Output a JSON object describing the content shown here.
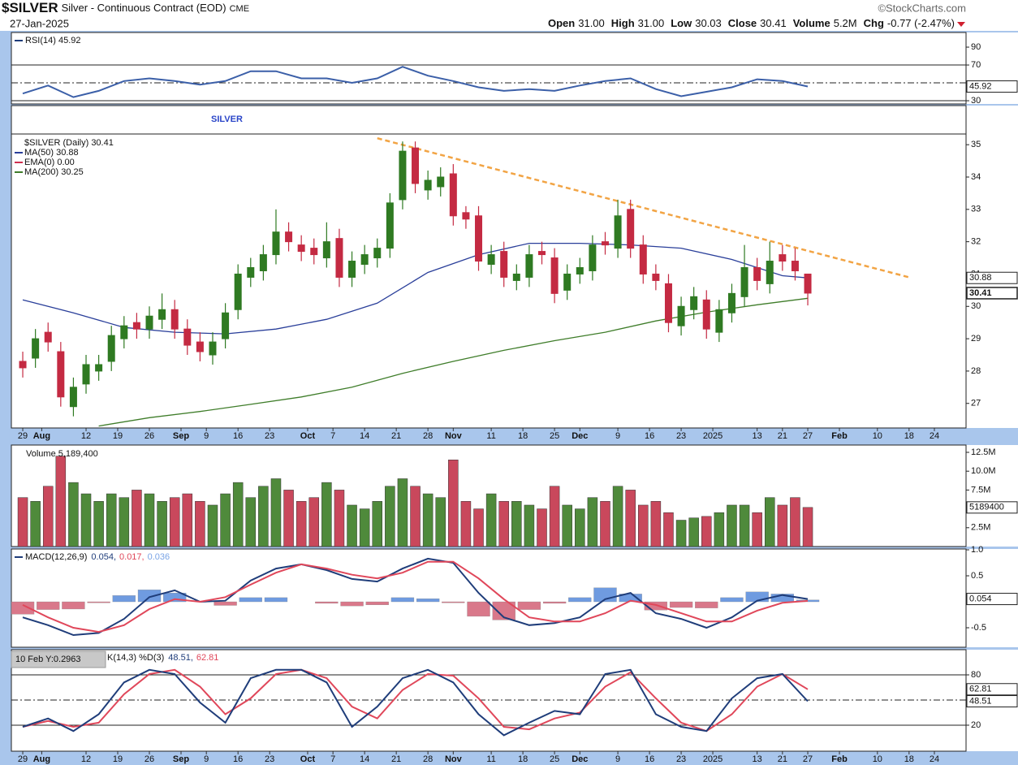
{
  "header": {
    "symbol": "$SILVER",
    "description": "Silver - Continuous Contract (EOD)",
    "exchange": "CME",
    "date": "27-Jan-2025",
    "brand": "©StockCharts.com",
    "quote": [
      {
        "label": "Open",
        "value": "31.00"
      },
      {
        "label": "High",
        "value": "31.00"
      },
      {
        "label": "Low",
        "value": "30.03"
      },
      {
        "label": "Close",
        "value": "30.41"
      },
      {
        "label": "Volume",
        "value": "5.2M"
      },
      {
        "label": "Chg",
        "value": "-0.77 (-2.47%)"
      }
    ]
  },
  "chart_data": [
    {
      "type": "line",
      "legend_title": "RSI(14) 45.92",
      "x": [
        0,
        4,
        8,
        12,
        16,
        20,
        24,
        28,
        32,
        36,
        40,
        44,
        48,
        52,
        56,
        60,
        64,
        68,
        72,
        76,
        80,
        84,
        88,
        92,
        96,
        100,
        104,
        108,
        112,
        116,
        120,
        124
      ],
      "series": [
        {
          "color": "#3b5fa8",
          "values": [
            38,
            47,
            34,
            41,
            52,
            55,
            52,
            48,
            52,
            63,
            63,
            55,
            55,
            50,
            55,
            68,
            58,
            52,
            45,
            41,
            43,
            41,
            47,
            52,
            55,
            43,
            35,
            40,
            45,
            54,
            52,
            45.92
          ]
        }
      ],
      "ylim": [
        26.4,
        106.4
      ],
      "yticks": [
        90,
        70,
        30
      ],
      "hlines": [
        {
          "value": 70,
          "dash": false
        },
        {
          "value": 50,
          "dash": true
        },
        {
          "value": 30,
          "dash": false
        }
      ],
      "badges": [
        45.92
      ]
    },
    {
      "type": "candlestick",
      "name": "$SILVER (Daily) 30.41",
      "annotation": "SILVER",
      "up_color": "#2f7a22",
      "down_color": "#c42a42",
      "x": [
        0,
        2,
        4,
        6,
        8,
        10,
        12,
        14,
        16,
        18,
        20,
        22,
        24,
        26,
        28,
        30,
        32,
        34,
        36,
        38,
        40,
        42,
        44,
        46,
        48,
        50,
        52,
        54,
        56,
        58,
        60,
        62,
        64,
        66,
        68,
        70,
        72,
        74,
        76,
        78,
        80,
        82,
        84,
        86,
        88,
        90,
        92,
        94,
        96,
        98,
        100,
        102,
        104,
        106,
        108,
        110,
        112,
        114,
        116,
        118,
        120,
        122,
        124
      ],
      "open": [
        28.3,
        28.4,
        29.2,
        28.6,
        26.9,
        27.6,
        28.0,
        28.3,
        29.0,
        29.5,
        29.3,
        29.6,
        29.9,
        29.3,
        28.9,
        28.5,
        29.0,
        29.9,
        30.9,
        31.1,
        31.6,
        32.3,
        31.9,
        31.8,
        31.5,
        32.1,
        30.9,
        31.3,
        31.5,
        31.8,
        33.3,
        34.9,
        33.6,
        33.7,
        34.1,
        32.9,
        32.8,
        31.3,
        31.7,
        30.8,
        30.9,
        31.7,
        31.5,
        30.5,
        31.0,
        31.1,
        32.0,
        31.8,
        33.0,
        31.9,
        31.0,
        30.7,
        29.4,
        29.9,
        30.2,
        29.2,
        29.8,
        30.3,
        31.2,
        30.7,
        31.6,
        31.4,
        31.0
      ],
      "high": [
        28.6,
        29.3,
        29.5,
        28.9,
        27.8,
        28.5,
        28.5,
        29.4,
        29.7,
        29.8,
        30.0,
        30.4,
        30.2,
        29.6,
        29.2,
        29.2,
        30.1,
        31.3,
        31.5,
        31.9,
        33.0,
        32.6,
        32.2,
        32.1,
        32.6,
        32.4,
        31.7,
        31.9,
        32.1,
        33.5,
        35.1,
        35.1,
        34.2,
        34.3,
        34.4,
        33.1,
        33.1,
        31.9,
        32.0,
        31.3,
        31.9,
        32.0,
        31.8,
        31.3,
        31.5,
        32.2,
        32.3,
        33.3,
        33.3,
        32.2,
        31.3,
        31.0,
        30.3,
        30.6,
        30.5,
        30.2,
        30.7,
        31.9,
        31.5,
        32.0,
        31.9,
        31.8,
        31.0
      ],
      "low": [
        27.8,
        28.1,
        28.6,
        26.9,
        26.6,
        27.3,
        27.7,
        28.0,
        28.7,
        29.0,
        29.0,
        29.3,
        29.0,
        28.5,
        28.3,
        28.2,
        28.7,
        29.6,
        30.6,
        30.8,
        31.3,
        31.7,
        31.4,
        31.3,
        31.2,
        30.6,
        30.6,
        31.0,
        31.2,
        31.5,
        33.0,
        33.5,
        33.3,
        33.4,
        32.5,
        32.4,
        31.1,
        31.0,
        30.6,
        30.5,
        30.6,
        31.3,
        30.1,
        30.2,
        30.7,
        30.8,
        31.6,
        31.5,
        31.5,
        30.7,
        30.5,
        29.2,
        29.1,
        29.6,
        29.0,
        28.9,
        29.5,
        30.0,
        30.5,
        30.4,
        31.1,
        30.8,
        30.03
      ],
      "close": [
        28.1,
        29.0,
        28.9,
        27.2,
        27.5,
        28.2,
        28.2,
        29.1,
        29.4,
        29.3,
        29.7,
        29.9,
        29.3,
        28.8,
        28.6,
        28.9,
        29.8,
        31.0,
        31.2,
        31.6,
        32.3,
        32.0,
        31.7,
        31.6,
        32.0,
        30.9,
        31.4,
        31.6,
        31.8,
        33.2,
        34.8,
        33.8,
        33.9,
        34.0,
        32.8,
        32.7,
        31.4,
        31.6,
        30.9,
        31.0,
        31.6,
        31.6,
        30.4,
        31.0,
        31.2,
        31.9,
        31.9,
        32.8,
        31.8,
        31.0,
        30.8,
        29.5,
        30.0,
        30.3,
        29.3,
        29.9,
        30.4,
        31.2,
        30.8,
        31.4,
        31.4,
        31.1,
        30.41
      ],
      "series": [
        {
          "name": "MA(50) 30.88",
          "color": "#2a3f9a",
          "x": [
            0,
            8,
            16,
            24,
            32,
            40,
            48,
            56,
            64,
            72,
            80,
            88,
            96,
            104,
            112,
            120,
            124
          ],
          "values": [
            30.2,
            29.8,
            29.35,
            29.2,
            29.15,
            29.3,
            29.6,
            30.1,
            31.05,
            31.6,
            31.95,
            31.95,
            31.9,
            31.8,
            31.45,
            30.95,
            30.88
          ]
        },
        {
          "name": "EMA(0) 0.00",
          "color": "#d03050",
          "x": [],
          "values": []
        },
        {
          "name": "MA(200) 30.25",
          "color": "#3f7d2a",
          "x": [
            12,
            20,
            28,
            36,
            44,
            52,
            60,
            68,
            76,
            84,
            92,
            100,
            108,
            116,
            124
          ],
          "values": [
            26.3,
            26.56,
            26.75,
            26.97,
            27.2,
            27.5,
            27.93,
            28.3,
            28.64,
            28.94,
            29.2,
            29.55,
            29.82,
            30.05,
            30.25
          ]
        }
      ],
      "trendline": {
        "x": [
          56,
          140
        ],
        "values": [
          35.2,
          30.9
        ],
        "color": "#f2a444"
      },
      "xlim": [
        -1.8,
        149
      ],
      "xticks": [
        {
          "value": 0,
          "label": "29"
        },
        {
          "value": 3,
          "label": "Aug"
        },
        {
          "value": 10,
          "label": "12"
        },
        {
          "value": 15,
          "label": "19"
        },
        {
          "value": 20,
          "label": "26"
        },
        {
          "value": 25,
          "label": "Sep"
        },
        {
          "value": 29,
          "label": "9"
        },
        {
          "value": 34,
          "label": "16"
        },
        {
          "value": 39,
          "label": "23"
        },
        {
          "value": 45,
          "label": "Oct"
        },
        {
          "value": 49,
          "label": "7"
        },
        {
          "value": 54,
          "label": "14"
        },
        {
          "value": 59,
          "label": "21"
        },
        {
          "value": 64,
          "label": "28"
        },
        {
          "value": 68,
          "label": "Nov"
        },
        {
          "value": 74,
          "label": "11"
        },
        {
          "value": 79,
          "label": "18"
        },
        {
          "value": 84,
          "label": "25"
        },
        {
          "value": 88,
          "label": "Dec"
        },
        {
          "value": 94,
          "label": "9"
        },
        {
          "value": 99,
          "label": "16"
        },
        {
          "value": 104,
          "label": "23"
        },
        {
          "value": 109,
          "label": "2025"
        },
        {
          "value": 116,
          "label": "13"
        },
        {
          "value": 120,
          "label": "21"
        },
        {
          "value": 124,
          "label": "27"
        },
        {
          "value": 129,
          "label": "Feb"
        },
        {
          "value": 135,
          "label": "10"
        },
        {
          "value": 140,
          "label": "18"
        },
        {
          "value": 144,
          "label": "24"
        }
      ],
      "ylim": [
        26.24,
        36.21
      ],
      "yticks": [
        27,
        28,
        29,
        30,
        31,
        32,
        33,
        34,
        35
      ],
      "badges": [
        30.88,
        30.41
      ],
      "badge_highlight": 1
    },
    {
      "type": "bar",
      "name": "Volume 5,189,400",
      "up_color": "#4f8a3b",
      "down_color": "#c9485c",
      "x": [
        0,
        2,
        4,
        6,
        8,
        10,
        12,
        14,
        16,
        18,
        20,
        22,
        24,
        26,
        28,
        30,
        32,
        34,
        36,
        38,
        40,
        42,
        44,
        46,
        48,
        50,
        52,
        54,
        56,
        58,
        60,
        62,
        64,
        66,
        68,
        70,
        72,
        74,
        76,
        78,
        80,
        82,
        84,
        86,
        88,
        90,
        92,
        94,
        96,
        98,
        100,
        102,
        104,
        106,
        108,
        110,
        112,
        114,
        116,
        118,
        120,
        122,
        124
      ],
      "values": [
        6500000,
        6000000,
        8000000,
        12000000,
        8500000,
        7000000,
        6000000,
        7000000,
        6500000,
        7500000,
        7000000,
        6000000,
        6500000,
        7000000,
        6000000,
        5500000,
        7000000,
        8500000,
        6500000,
        8000000,
        9000000,
        7500000,
        6000000,
        6500000,
        8500000,
        7500000,
        5500000,
        5000000,
        6000000,
        8000000,
        9000000,
        8000000,
        7000000,
        6500000,
        11500000,
        6000000,
        5000000,
        7000000,
        6000000,
        6000000,
        5500000,
        5000000,
        8000000,
        5500000,
        5000000,
        6500000,
        6000000,
        8000000,
        7500000,
        5500000,
        6000000,
        4500000,
        3500000,
        3800000,
        4000000,
        4500000,
        5500000,
        5500000,
        4500000,
        6500000,
        5500000,
        6500000,
        5189400
      ],
      "ylim": [
        0,
        13470000
      ],
      "yticks": [
        {
          "value": 12500000,
          "label": "12.5M"
        },
        {
          "value": 10000000,
          "label": "10.0M"
        },
        {
          "value": 7500000,
          "label": "7.5M"
        },
        {
          "value": 2500000,
          "label": "2.5M"
        }
      ],
      "badges": [
        5189400
      ]
    },
    {
      "type": "line",
      "legend_title": "MACD(12,26,9)",
      "x": [
        0,
        4,
        8,
        12,
        16,
        20,
        24,
        28,
        32,
        36,
        40,
        44,
        48,
        52,
        56,
        60,
        64,
        68,
        72,
        76,
        80,
        84,
        88,
        92,
        96,
        100,
        104,
        108,
        112,
        116,
        120,
        124
      ],
      "histogram": {
        "color_pos": "#6f9be0",
        "color_neg": "#d9788a",
        "value_label": "0.036",
        "label_color": "#7aa4e6",
        "values": [
          -0.24,
          -0.15,
          -0.14,
          -0.02,
          0.12,
          0.23,
          0.17,
          0,
          -0.07,
          0.08,
          0.08,
          0,
          -0.03,
          -0.08,
          -0.06,
          0.08,
          0.06,
          -0.02,
          -0.28,
          -0.35,
          -0.15,
          -0.03,
          0.08,
          0.27,
          0.15,
          -0.16,
          -0.11,
          -0.12,
          0.08,
          0.19,
          0.15,
          0.036
        ]
      },
      "series": [
        {
          "color": "#1f3d7a",
          "value_label": "0.054,",
          "values": [
            -0.3,
            -0.45,
            -0.64,
            -0.6,
            -0.33,
            0.09,
            0.22,
            0,
            0.02,
            0.41,
            0.64,
            0.72,
            0.61,
            0.44,
            0.39,
            0.64,
            0.83,
            0.75,
            0.17,
            -0.3,
            -0.45,
            -0.41,
            -0.3,
            0.05,
            0.17,
            -0.22,
            -0.33,
            -0.5,
            -0.3,
            0.02,
            0.13,
            0.054
          ]
        },
        {
          "color": "#e0475a",
          "value_label": "0.017,",
          "values": [
            -0.06,
            -0.3,
            -0.5,
            -0.58,
            -0.45,
            -0.14,
            0.05,
            0,
            0.09,
            0.33,
            0.56,
            0.72,
            0.64,
            0.52,
            0.45,
            0.56,
            0.77,
            0.77,
            0.45,
            0.05,
            -0.3,
            -0.38,
            -0.38,
            -0.22,
            0.02,
            -0.06,
            -0.22,
            -0.38,
            -0.38,
            -0.17,
            -0.02,
            0.017
          ]
        }
      ],
      "ylim": [
        -0.875,
        1.016
      ],
      "yticks": [
        {
          "value": 1,
          "label": "1.0"
        },
        0.5,
        -0.5
      ],
      "badges": [
        0.054
      ]
    },
    {
      "type": "line",
      "legend_title": "K(14,3) %D(3)",
      "tooltip": "10 Feb Y:0.2963",
      "x": [
        0,
        4,
        8,
        12,
        16,
        20,
        24,
        28,
        32,
        36,
        40,
        44,
        48,
        52,
        56,
        60,
        64,
        68,
        72,
        76,
        80,
        84,
        88,
        92,
        96,
        100,
        104,
        108,
        112,
        116,
        120,
        124
      ],
      "series": [
        {
          "color": "#e0475a",
          "values": [
            18,
            25,
            18,
            23,
            57,
            81,
            86,
            66,
            33,
            52,
            81,
            86,
            76,
            42,
            28,
            62,
            81,
            79,
            52,
            18,
            15,
            28,
            35,
            66,
            83,
            52,
            23,
            13,
            33,
            66,
            81,
            62.81
          ]
        },
        {
          "color": "#1f3d7a",
          "value_label": "48.51,",
          "values": [
            18,
            28,
            13,
            33,
            71,
            86,
            81,
            47,
            23,
            76,
            86,
            86,
            71,
            18,
            42,
            76,
            86,
            71,
            33,
            8,
            23,
            37,
            33,
            81,
            86,
            33,
            18,
            13,
            52,
            76,
            81,
            48.51
          ]
        },
        {
          "color": "#e0475a",
          "value_label": "62.81",
          "x": [],
          "values": []
        }
      ],
      "ylim": [
        -11,
        110
      ],
      "yticks": [
        80,
        20
      ],
      "hlines": [
        {
          "value": 80,
          "dash": false
        },
        {
          "value": 50,
          "dash": true
        },
        {
          "value": 20,
          "dash": false
        }
      ],
      "badges": [
        62.81,
        48.51
      ]
    }
  ]
}
